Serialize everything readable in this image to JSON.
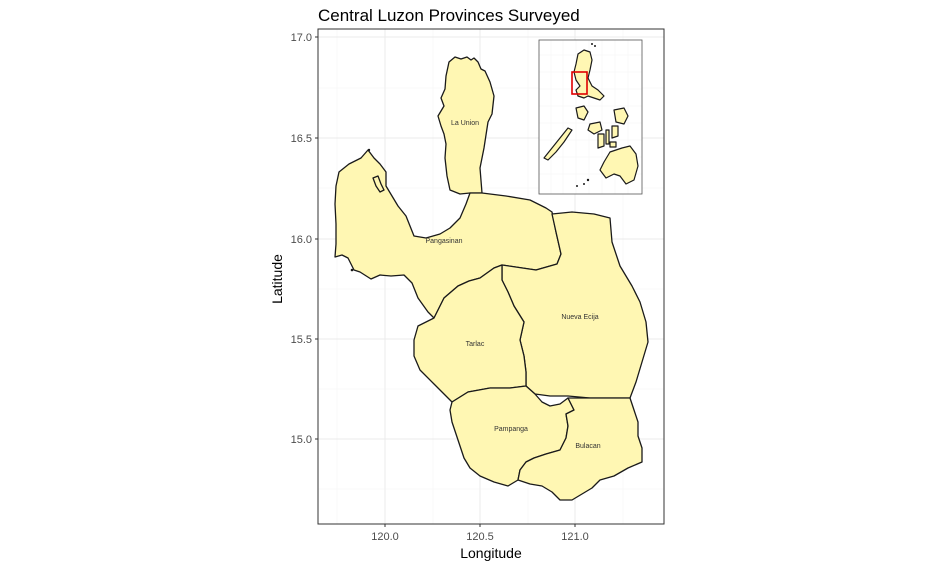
{
  "title": "Central Luzon Provinces Surveyed",
  "axes": {
    "xlabel": "Longitude",
    "ylabel": "Latitude",
    "x_ticks": [
      "120.0",
      "120.5",
      "121.0"
    ],
    "y_ticks": [
      "15.0",
      "15.5",
      "16.0",
      "16.5",
      "17.0"
    ]
  },
  "map_data": {
    "type": "choropleth-map",
    "region": "Central Luzon, Philippines",
    "xlim": [
      119.66,
      121.4
    ],
    "ylim": [
      14.6,
      17.04
    ],
    "x_tick_values": [
      120.0,
      120.5,
      121.0
    ],
    "y_tick_values": [
      15.0,
      15.5,
      16.0,
      16.5,
      17.0
    ],
    "grid": true,
    "fill_color": "#fff7b3",
    "border_color": "#1a1a1a",
    "provinces": [
      {
        "name": "La Union",
        "label_lon": 120.42,
        "label_lat": 16.58
      },
      {
        "name": "Pangasinan",
        "label_lon": 120.3,
        "label_lat": 15.99
      },
      {
        "name": "Nueva Ecija",
        "label_lon": 121.03,
        "label_lat": 15.61
      },
      {
        "name": "Tarlac",
        "label_lon": 120.48,
        "label_lat": 15.48
      },
      {
        "name": "Pampanga",
        "label_lon": 120.64,
        "label_lat": 15.05
      },
      {
        "name": "Bulacan",
        "label_lon": 121.07,
        "label_lat": 14.97
      }
    ]
  },
  "inset": {
    "subject": "Philippines locator map",
    "highlight_color": "#e00000",
    "grid": true
  }
}
